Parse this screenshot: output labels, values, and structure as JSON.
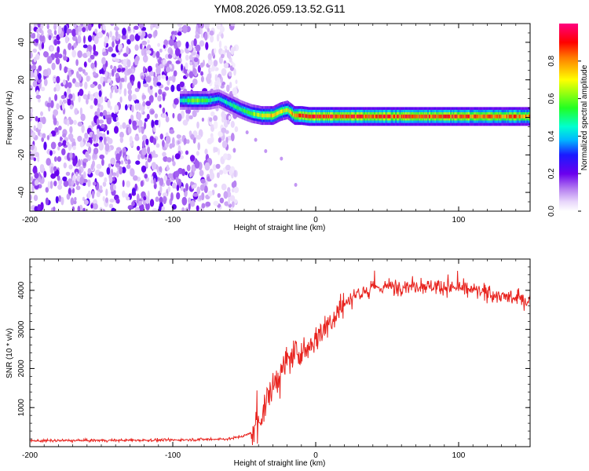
{
  "title": "YM08.2026.059.13.52.G11",
  "chart_data": [
    {
      "type": "heatmap",
      "xlabel": "Height of straight line (km)",
      "ylabel": "Frequency (Hz)",
      "xlim": [
        -200,
        150
      ],
      "ylim": [
        -50,
        50
      ],
      "xticks": [
        -200,
        -100,
        0,
        100
      ],
      "xtick_labels": [
        "-200",
        "-100",
        "0",
        "100"
      ],
      "yticks": [
        -40,
        -20,
        0,
        20,
        40
      ],
      "ytick_labels": [
        "-40",
        "-20",
        "0",
        "20",
        "40"
      ],
      "colorbar": {
        "label": "Normalized spectral amplitude",
        "range": [
          0,
          1
        ],
        "ticks": [
          0.0,
          0.2,
          0.4,
          0.6,
          0.8
        ],
        "tick_labels": [
          "0.0",
          "0.2",
          "0.4",
          "0.6",
          "0.8"
        ]
      },
      "noise_region_km": [
        -200,
        -55
      ],
      "signal_track": {
        "x_km": [
          -95,
          -85,
          -75,
          -68,
          -60,
          -52,
          -45,
          -38,
          -30,
          -25,
          -20,
          -15,
          -10,
          -5,
          0,
          50,
          100,
          150
        ],
        "freq_hz": [
          9,
          9,
          9,
          10,
          7,
          4,
          2,
          1,
          1,
          3,
          4,
          1,
          1,
          0.5,
          0.5,
          0.5,
          0.5,
          0.5
        ],
        "amplitude": [
          0.45,
          0.65,
          0.55,
          0.45,
          0.5,
          0.55,
          0.6,
          0.7,
          0.8,
          0.75,
          0.7,
          0.85,
          0.9,
          0.95,
          0.95,
          0.92,
          0.9,
          0.85
        ]
      }
    },
    {
      "type": "line",
      "xlabel": "Height of straight line (km)",
      "ylabel": "SNR (10 * v/v)",
      "xlim": [
        -200,
        150
      ],
      "ylim": [
        0,
        4800
      ],
      "xticks": [
        -200,
        -100,
        0,
        100
      ],
      "xtick_labels": [
        "-200",
        "-100",
        "0",
        "100"
      ],
      "yticks": [
        1000,
        2000,
        3000,
        4000
      ],
      "ytick_labels": [
        "1000",
        "2000",
        "3000",
        "4000"
      ],
      "series": [
        {
          "name": "SNR",
          "color": "#e8231e",
          "x": [
            -200,
            -150,
            -100,
            -60,
            -50,
            -45,
            -40,
            -35,
            -30,
            -25,
            -20,
            -15,
            -10,
            -5,
            0,
            5,
            10,
            15,
            20,
            25,
            30,
            40,
            50,
            70,
            90,
            110,
            130,
            150
          ],
          "y": [
            150,
            160,
            170,
            200,
            280,
            350,
            600,
            1100,
            1500,
            1900,
            2200,
            2400,
            2350,
            2600,
            2750,
            3000,
            3200,
            3450,
            3650,
            3800,
            3950,
            4050,
            4100,
            4120,
            4100,
            4000,
            3850,
            3700
          ]
        }
      ]
    }
  ]
}
